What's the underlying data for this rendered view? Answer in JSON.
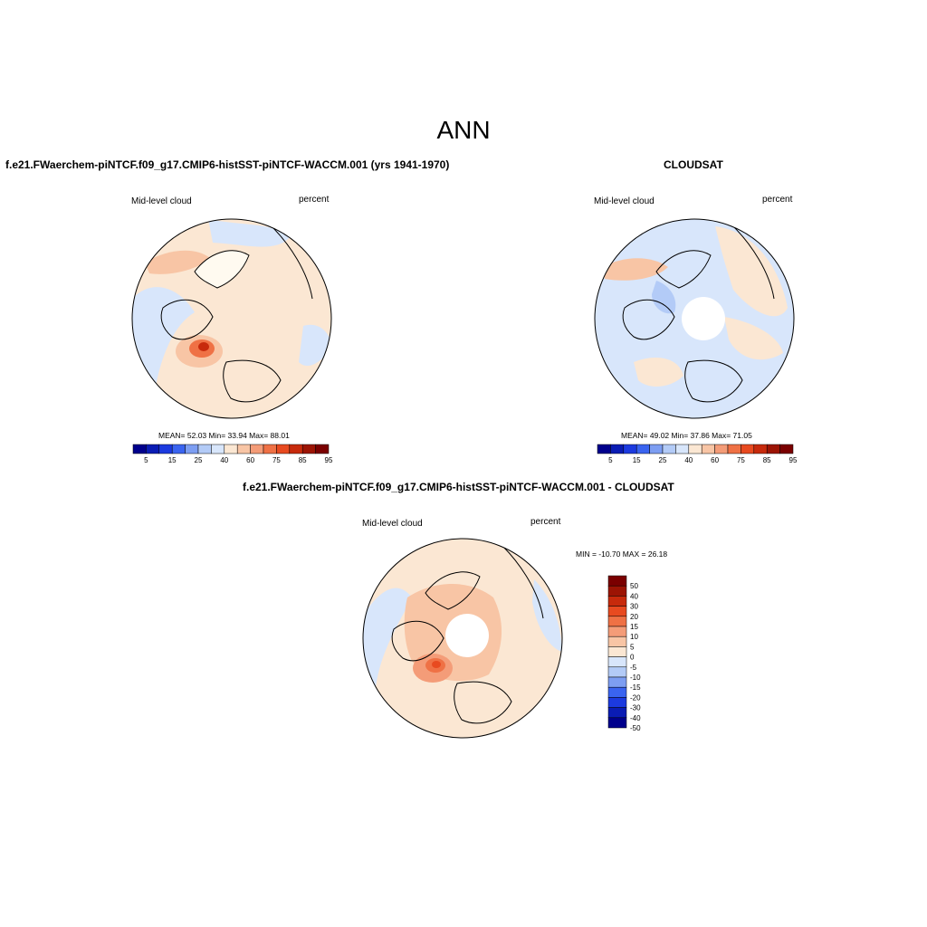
{
  "figure": {
    "title": "ANN"
  },
  "panels": [
    {
      "title": "f.e21.FWaerchem-piNTCF.f09_g17.CMIP6-histSST-piNTCF-WACCM.001 (yrs 1941-1970)",
      "left_label": "Mid-level cloud",
      "right_label": "percent",
      "stats": "MEAN=  52.03  Min=  33.94  Max=  88.01",
      "colorbar_ticks": [
        "5",
        "15",
        "25",
        "40",
        "60",
        "75",
        "85",
        "95"
      ]
    },
    {
      "title": "CLOUDSAT",
      "left_label": "Mid-level cloud",
      "right_label": "percent",
      "stats": "MEAN=  49.02  Min=  37.86  Max=  71.05",
      "colorbar_ticks": [
        "5",
        "15",
        "25",
        "40",
        "60",
        "75",
        "85",
        "95"
      ]
    },
    {
      "title": "f.e21.FWaerchem-piNTCF.f09_g17.CMIP6-histSST-piNTCF-WACCM.001 - CLOUDSAT",
      "left_label": "Mid-level cloud",
      "right_label": "percent",
      "stats": "MIN = -10.70 MAX =  26.18",
      "colorbar_ticks": [
        "50",
        "40",
        "30",
        "20",
        "15",
        "10",
        "5",
        "0",
        "-5",
        "-10",
        "-15",
        "-20",
        "-30",
        "-40",
        "-50"
      ]
    }
  ],
  "colors": {
    "abs_palette": [
      "#00008c",
      "#0a1cb4",
      "#1c3adf",
      "#3a64f0",
      "#7d9ef2",
      "#b3cbf7",
      "#d8e6fb",
      "#fbe7d3",
      "#f8c5a5",
      "#f49c78",
      "#ef7145",
      "#e84a20",
      "#c72a0c",
      "#9c1404",
      "#7a0000"
    ],
    "diff_palette": [
      "#7a0000",
      "#9c1404",
      "#c72a0c",
      "#e84a20",
      "#ef7145",
      "#f49c78",
      "#f8c5a5",
      "#fbe7d3",
      "#d8e6fb",
      "#b3cbf7",
      "#7d9ef2",
      "#3a64f0",
      "#1c3adf",
      "#0a1cb4",
      "#00008c"
    ]
  }
}
